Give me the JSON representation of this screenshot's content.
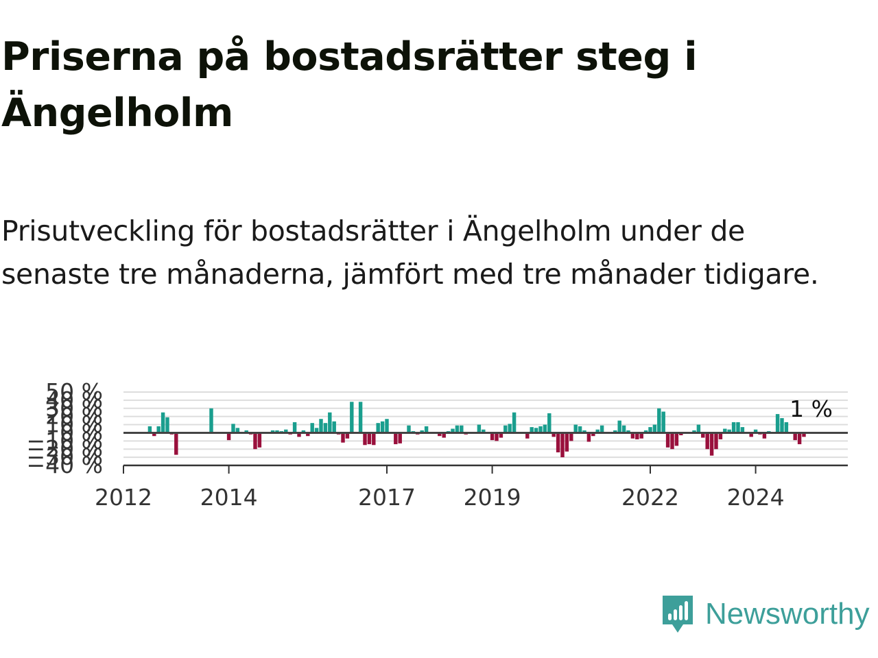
{
  "title": "Priserna på bostadsrätter steg i Ängelholm",
  "subtitle": "Prisutveckling för bostadsrätter i Ängelholm under de senaste tre månaderna, jämfört med tre månader tidigare.",
  "brand": {
    "name": "Newsworthy",
    "color": "#3d9f9a",
    "icon": "newsworthy-bar-chart-icon"
  },
  "colors": {
    "positive": "#1a9e8e",
    "negative": "#99103c",
    "zero_line": "#444444",
    "grid": "#dddddd"
  },
  "chart_data": {
    "type": "bar",
    "x_start": "2012-01",
    "x_end": "2025-10",
    "ylim": [
      -40,
      50
    ],
    "y_ticks": [
      -40,
      -30,
      -20,
      -10,
      0,
      10,
      20,
      30,
      40,
      50
    ],
    "y_tick_labels": [
      "−40 %",
      "−30 %",
      "−20 %",
      "−10 %",
      "0 %",
      "10 %",
      "20 %",
      "30 %",
      "40 %",
      "50 %"
    ],
    "x_ticks": [
      "2012-01",
      "2014-01",
      "2017-01",
      "2019-01",
      "2022-01",
      "2024-01"
    ],
    "x_tick_labels": [
      "2012",
      "2014",
      "2017",
      "2019",
      "2022",
      "2024"
    ],
    "grid": true,
    "last_value_label": "1 %",
    "series": [
      {
        "values": [
          {
            "x": "2012-07",
            "y": 8
          },
          {
            "x": "2012-08",
            "y": -4
          },
          {
            "x": "2012-09",
            "y": 8
          },
          {
            "x": "2012-10",
            "y": 25
          },
          {
            "x": "2012-11",
            "y": 19
          },
          {
            "x": "2012-12",
            "y": -2
          },
          {
            "x": "2013-01",
            "y": -27
          },
          {
            "x": "2013-09",
            "y": 30
          },
          {
            "x": "2014-01",
            "y": -9
          },
          {
            "x": "2014-02",
            "y": 11
          },
          {
            "x": "2014-03",
            "y": 6
          },
          {
            "x": "2014-05",
            "y": 3
          },
          {
            "x": "2014-06",
            "y": -2
          },
          {
            "x": "2014-07",
            "y": -20
          },
          {
            "x": "2014-08",
            "y": -18
          },
          {
            "x": "2014-11",
            "y": 3
          },
          {
            "x": "2014-12",
            "y": 3
          },
          {
            "x": "2015-01",
            "y": 2
          },
          {
            "x": "2015-02",
            "y": 4
          },
          {
            "x": "2015-03",
            "y": -2
          },
          {
            "x": "2015-04",
            "y": 13
          },
          {
            "x": "2015-05",
            "y": -5
          },
          {
            "x": "2015-06",
            "y": 3
          },
          {
            "x": "2015-07",
            "y": -4
          },
          {
            "x": "2015-08",
            "y": 12
          },
          {
            "x": "2015-09",
            "y": 6
          },
          {
            "x": "2015-10",
            "y": 17
          },
          {
            "x": "2015-11",
            "y": 12
          },
          {
            "x": "2015-12",
            "y": 25
          },
          {
            "x": "2016-01",
            "y": 14
          },
          {
            "x": "2016-02",
            "y": -2
          },
          {
            "x": "2016-03",
            "y": -12
          },
          {
            "x": "2016-04",
            "y": -7
          },
          {
            "x": "2016-05",
            "y": 38
          },
          {
            "x": "2016-07",
            "y": 38
          },
          {
            "x": "2016-08",
            "y": -15
          },
          {
            "x": "2016-09",
            "y": -14
          },
          {
            "x": "2016-10",
            "y": -15
          },
          {
            "x": "2016-11",
            "y": 12
          },
          {
            "x": "2016-12",
            "y": 14
          },
          {
            "x": "2017-01",
            "y": 17
          },
          {
            "x": "2017-03",
            "y": -14
          },
          {
            "x": "2017-04",
            "y": -13
          },
          {
            "x": "2017-06",
            "y": 9
          },
          {
            "x": "2017-07",
            "y": 2
          },
          {
            "x": "2017-08",
            "y": -2
          },
          {
            "x": "2017-09",
            "y": 3
          },
          {
            "x": "2017-10",
            "y": 8
          },
          {
            "x": "2018-01",
            "y": -4
          },
          {
            "x": "2018-02",
            "y": -6
          },
          {
            "x": "2018-03",
            "y": 2
          },
          {
            "x": "2018-04",
            "y": 5
          },
          {
            "x": "2018-05",
            "y": 9
          },
          {
            "x": "2018-06",
            "y": 9
          },
          {
            "x": "2018-07",
            "y": -2
          },
          {
            "x": "2018-10",
            "y": 10
          },
          {
            "x": "2018-11",
            "y": 4
          },
          {
            "x": "2018-12",
            "y": 1
          },
          {
            "x": "2019-01",
            "y": -9
          },
          {
            "x": "2019-02",
            "y": -10
          },
          {
            "x": "2019-03",
            "y": -6
          },
          {
            "x": "2019-04",
            "y": 9
          },
          {
            "x": "2019-05",
            "y": 11
          },
          {
            "x": "2019-06",
            "y": 25
          },
          {
            "x": "2019-09",
            "y": -7
          },
          {
            "x": "2019-10",
            "y": 7
          },
          {
            "x": "2019-11",
            "y": 6
          },
          {
            "x": "2019-12",
            "y": 8
          },
          {
            "x": "2020-01",
            "y": 10
          },
          {
            "x": "2020-02",
            "y": 24
          },
          {
            "x": "2020-03",
            "y": -5
          },
          {
            "x": "2020-04",
            "y": -24
          },
          {
            "x": "2020-05",
            "y": -30
          },
          {
            "x": "2020-06",
            "y": -23
          },
          {
            "x": "2020-07",
            "y": -10
          },
          {
            "x": "2020-08",
            "y": 10
          },
          {
            "x": "2020-09",
            "y": 8
          },
          {
            "x": "2020-10",
            "y": 3
          },
          {
            "x": "2020-11",
            "y": -11
          },
          {
            "x": "2020-12",
            "y": -4
          },
          {
            "x": "2021-01",
            "y": 4
          },
          {
            "x": "2021-02",
            "y": 9
          },
          {
            "x": "2021-05",
            "y": 3
          },
          {
            "x": "2021-06",
            "y": 15
          },
          {
            "x": "2021-07",
            "y": 9
          },
          {
            "x": "2021-08",
            "y": 3
          },
          {
            "x": "2021-09",
            "y": -7
          },
          {
            "x": "2021-10",
            "y": -8
          },
          {
            "x": "2021-11",
            "y": -7
          },
          {
            "x": "2021-12",
            "y": 3
          },
          {
            "x": "2022-01",
            "y": 7
          },
          {
            "x": "2022-02",
            "y": 10
          },
          {
            "x": "2022-03",
            "y": 30
          },
          {
            "x": "2022-04",
            "y": 26
          },
          {
            "x": "2022-05",
            "y": -18
          },
          {
            "x": "2022-06",
            "y": -20
          },
          {
            "x": "2022-07",
            "y": -16
          },
          {
            "x": "2022-08",
            "y": -3
          },
          {
            "x": "2022-11",
            "y": 3
          },
          {
            "x": "2022-12",
            "y": 10
          },
          {
            "x": "2023-01",
            "y": -6
          },
          {
            "x": "2023-02",
            "y": -20
          },
          {
            "x": "2023-03",
            "y": -28
          },
          {
            "x": "2023-04",
            "y": -20
          },
          {
            "x": "2023-05",
            "y": -8
          },
          {
            "x": "2023-06",
            "y": 5
          },
          {
            "x": "2023-07",
            "y": 4
          },
          {
            "x": "2023-08",
            "y": 13
          },
          {
            "x": "2023-09",
            "y": 13
          },
          {
            "x": "2023-10",
            "y": 7
          },
          {
            "x": "2023-11",
            "y": 1
          },
          {
            "x": "2023-12",
            "y": -5
          },
          {
            "x": "2024-01",
            "y": 4
          },
          {
            "x": "2024-02",
            "y": -2
          },
          {
            "x": "2024-03",
            "y": -7
          },
          {
            "x": "2024-04",
            "y": 2
          },
          {
            "x": "2024-06",
            "y": 23
          },
          {
            "x": "2024-07",
            "y": 18
          },
          {
            "x": "2024-08",
            "y": 13
          },
          {
            "x": "2024-09",
            "y": 1
          },
          {
            "x": "2024-10",
            "y": -9
          },
          {
            "x": "2024-11",
            "y": -14
          },
          {
            "x": "2024-12",
            "y": -5
          },
          {
            "x": "2025-01",
            "y": 1
          }
        ]
      }
    ]
  }
}
